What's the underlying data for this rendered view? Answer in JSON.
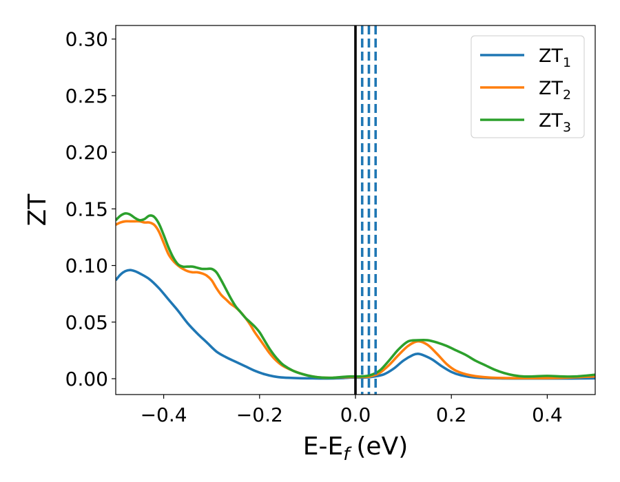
{
  "chart_data": {
    "type": "line",
    "xlabel": {
      "base": "E-E",
      "sub": "f",
      "unit": "(eV)"
    },
    "ylabel": "ZT",
    "xlim": [
      -0.5,
      0.5
    ],
    "ylim": [
      -0.014,
      0.312
    ],
    "xticks": [
      {
        "value": -0.4,
        "label": "−0.4"
      },
      {
        "value": -0.2,
        "label": "−0.2"
      },
      {
        "value": 0.0,
        "label": "0.0"
      },
      {
        "value": 0.2,
        "label": "0.2"
      },
      {
        "value": 0.4,
        "label": "0.4"
      }
    ],
    "yticks": [
      {
        "value": 0.0,
        "label": "0.00"
      },
      {
        "value": 0.05,
        "label": "0.05"
      },
      {
        "value": 0.1,
        "label": "0.10"
      },
      {
        "value": 0.15,
        "label": "0.15"
      },
      {
        "value": 0.2,
        "label": "0.20"
      },
      {
        "value": 0.25,
        "label": "0.25"
      },
      {
        "value": 0.3,
        "label": "0.30"
      }
    ],
    "grid": false,
    "legend_position": "top-right",
    "vlines": [
      {
        "x": 0.0,
        "color": "#000000",
        "style": "solid"
      },
      {
        "x": 0.014,
        "color": "#1f77b4",
        "style": "dashed"
      },
      {
        "x": 0.028,
        "color": "#1f77b4",
        "style": "dashed"
      },
      {
        "x": 0.042,
        "color": "#1f77b4",
        "style": "dashed"
      }
    ],
    "series": [
      {
        "name": "ZT",
        "sub": "1",
        "color": "#1f77b4",
        "points": [
          [
            -0.5,
            0.087
          ],
          [
            -0.49,
            0.092
          ],
          [
            -0.48,
            0.095
          ],
          [
            -0.47,
            0.096
          ],
          [
            -0.46,
            0.095
          ],
          [
            -0.45,
            0.093
          ],
          [
            -0.43,
            0.088
          ],
          [
            -0.41,
            0.08
          ],
          [
            -0.39,
            0.07
          ],
          [
            -0.37,
            0.06
          ],
          [
            -0.35,
            0.049
          ],
          [
            -0.33,
            0.04
          ],
          [
            -0.31,
            0.032
          ],
          [
            -0.29,
            0.024
          ],
          [
            -0.27,
            0.019
          ],
          [
            -0.25,
            0.015
          ],
          [
            -0.23,
            0.011
          ],
          [
            -0.21,
            0.007
          ],
          [
            -0.19,
            0.004
          ],
          [
            -0.17,
            0.002
          ],
          [
            -0.15,
            0.001
          ],
          [
            -0.12,
            0.0005
          ],
          [
            -0.09,
            0.0003
          ],
          [
            -0.06,
            0.0002
          ],
          [
            -0.03,
            0.0005
          ],
          [
            -0.01,
            0.001
          ],
          [
            0.0,
            0.001
          ],
          [
            0.02,
            0.001
          ],
          [
            0.04,
            0.002
          ],
          [
            0.06,
            0.004
          ],
          [
            0.08,
            0.009
          ],
          [
            0.1,
            0.016
          ],
          [
            0.12,
            0.021
          ],
          [
            0.13,
            0.022
          ],
          [
            0.14,
            0.021
          ],
          [
            0.16,
            0.017
          ],
          [
            0.18,
            0.011
          ],
          [
            0.2,
            0.006
          ],
          [
            0.22,
            0.003
          ],
          [
            0.25,
            0.001
          ],
          [
            0.3,
            0.0003
          ],
          [
            0.35,
            0.0002
          ],
          [
            0.4,
            0.0002
          ],
          [
            0.45,
            0.0002
          ],
          [
            0.5,
            0.0003
          ]
        ]
      },
      {
        "name": "ZT",
        "sub": "2",
        "color": "#ff7f0e",
        "points": [
          [
            -0.5,
            0.136
          ],
          [
            -0.49,
            0.138
          ],
          [
            -0.48,
            0.139
          ],
          [
            -0.47,
            0.139
          ],
          [
            -0.46,
            0.139
          ],
          [
            -0.45,
            0.139
          ],
          [
            -0.44,
            0.138
          ],
          [
            -0.43,
            0.138
          ],
          [
            -0.42,
            0.136
          ],
          [
            -0.41,
            0.13
          ],
          [
            -0.4,
            0.12
          ],
          [
            -0.39,
            0.11
          ],
          [
            -0.38,
            0.104
          ],
          [
            -0.37,
            0.1
          ],
          [
            -0.36,
            0.097
          ],
          [
            -0.35,
            0.095
          ],
          [
            -0.34,
            0.094
          ],
          [
            -0.33,
            0.094
          ],
          [
            -0.32,
            0.093
          ],
          [
            -0.31,
            0.091
          ],
          [
            -0.3,
            0.087
          ],
          [
            -0.29,
            0.08
          ],
          [
            -0.28,
            0.074
          ],
          [
            -0.27,
            0.07
          ],
          [
            -0.26,
            0.066
          ],
          [
            -0.25,
            0.063
          ],
          [
            -0.24,
            0.059
          ],
          [
            -0.23,
            0.054
          ],
          [
            -0.22,
            0.048
          ],
          [
            -0.21,
            0.041
          ],
          [
            -0.2,
            0.035
          ],
          [
            -0.19,
            0.029
          ],
          [
            -0.18,
            0.023
          ],
          [
            -0.17,
            0.018
          ],
          [
            -0.16,
            0.014
          ],
          [
            -0.15,
            0.011
          ],
          [
            -0.13,
            0.007
          ],
          [
            -0.11,
            0.004
          ],
          [
            -0.09,
            0.002
          ],
          [
            -0.07,
            0.001
          ],
          [
            -0.05,
            0.0008
          ],
          [
            -0.03,
            0.0012
          ],
          [
            -0.01,
            0.0015
          ],
          [
            0.01,
            0.0015
          ],
          [
            0.03,
            0.002
          ],
          [
            0.05,
            0.005
          ],
          [
            0.07,
            0.012
          ],
          [
            0.09,
            0.021
          ],
          [
            0.11,
            0.029
          ],
          [
            0.13,
            0.033
          ],
          [
            0.15,
            0.03
          ],
          [
            0.17,
            0.022
          ],
          [
            0.19,
            0.013
          ],
          [
            0.21,
            0.007
          ],
          [
            0.24,
            0.003
          ],
          [
            0.28,
            0.001
          ],
          [
            0.33,
            0.0005
          ],
          [
            0.38,
            0.0005
          ],
          [
            0.43,
            0.0008
          ],
          [
            0.47,
            0.0015
          ],
          [
            0.5,
            0.002
          ]
        ]
      },
      {
        "name": "ZT",
        "sub": "3",
        "color": "#2ca02c",
        "points": [
          [
            -0.5,
            0.14
          ],
          [
            -0.49,
            0.144
          ],
          [
            -0.48,
            0.146
          ],
          [
            -0.47,
            0.145
          ],
          [
            -0.46,
            0.142
          ],
          [
            -0.45,
            0.14
          ],
          [
            -0.44,
            0.141
          ],
          [
            -0.43,
            0.144
          ],
          [
            -0.42,
            0.143
          ],
          [
            -0.41,
            0.137
          ],
          [
            -0.4,
            0.127
          ],
          [
            -0.39,
            0.116
          ],
          [
            -0.38,
            0.107
          ],
          [
            -0.37,
            0.101
          ],
          [
            -0.36,
            0.099
          ],
          [
            -0.35,
            0.099
          ],
          [
            -0.34,
            0.099
          ],
          [
            -0.33,
            0.098
          ],
          [
            -0.32,
            0.097
          ],
          [
            -0.31,
            0.097
          ],
          [
            -0.3,
            0.097
          ],
          [
            -0.29,
            0.094
          ],
          [
            -0.28,
            0.087
          ],
          [
            -0.27,
            0.079
          ],
          [
            -0.26,
            0.071
          ],
          [
            -0.25,
            0.064
          ],
          [
            -0.24,
            0.059
          ],
          [
            -0.23,
            0.054
          ],
          [
            -0.22,
            0.05
          ],
          [
            -0.21,
            0.046
          ],
          [
            -0.2,
            0.041
          ],
          [
            -0.19,
            0.034
          ],
          [
            -0.18,
            0.027
          ],
          [
            -0.17,
            0.021
          ],
          [
            -0.16,
            0.016
          ],
          [
            -0.15,
            0.012
          ],
          [
            -0.13,
            0.007
          ],
          [
            -0.11,
            0.004
          ],
          [
            -0.09,
            0.002
          ],
          [
            -0.07,
            0.001
          ],
          [
            -0.05,
            0.0008
          ],
          [
            -0.03,
            0.0015
          ],
          [
            -0.01,
            0.002
          ],
          [
            0.01,
            0.002
          ],
          [
            0.03,
            0.003
          ],
          [
            0.05,
            0.007
          ],
          [
            0.07,
            0.016
          ],
          [
            0.09,
            0.026
          ],
          [
            0.11,
            0.033
          ],
          [
            0.13,
            0.034
          ],
          [
            0.15,
            0.034
          ],
          [
            0.17,
            0.032
          ],
          [
            0.19,
            0.029
          ],
          [
            0.21,
            0.025
          ],
          [
            0.23,
            0.021
          ],
          [
            0.25,
            0.016
          ],
          [
            0.27,
            0.012
          ],
          [
            0.29,
            0.008
          ],
          [
            0.31,
            0.005
          ],
          [
            0.33,
            0.003
          ],
          [
            0.35,
            0.002
          ],
          [
            0.37,
            0.002
          ],
          [
            0.4,
            0.0025
          ],
          [
            0.43,
            0.002
          ],
          [
            0.46,
            0.002
          ],
          [
            0.5,
            0.0035
          ]
        ]
      }
    ]
  }
}
